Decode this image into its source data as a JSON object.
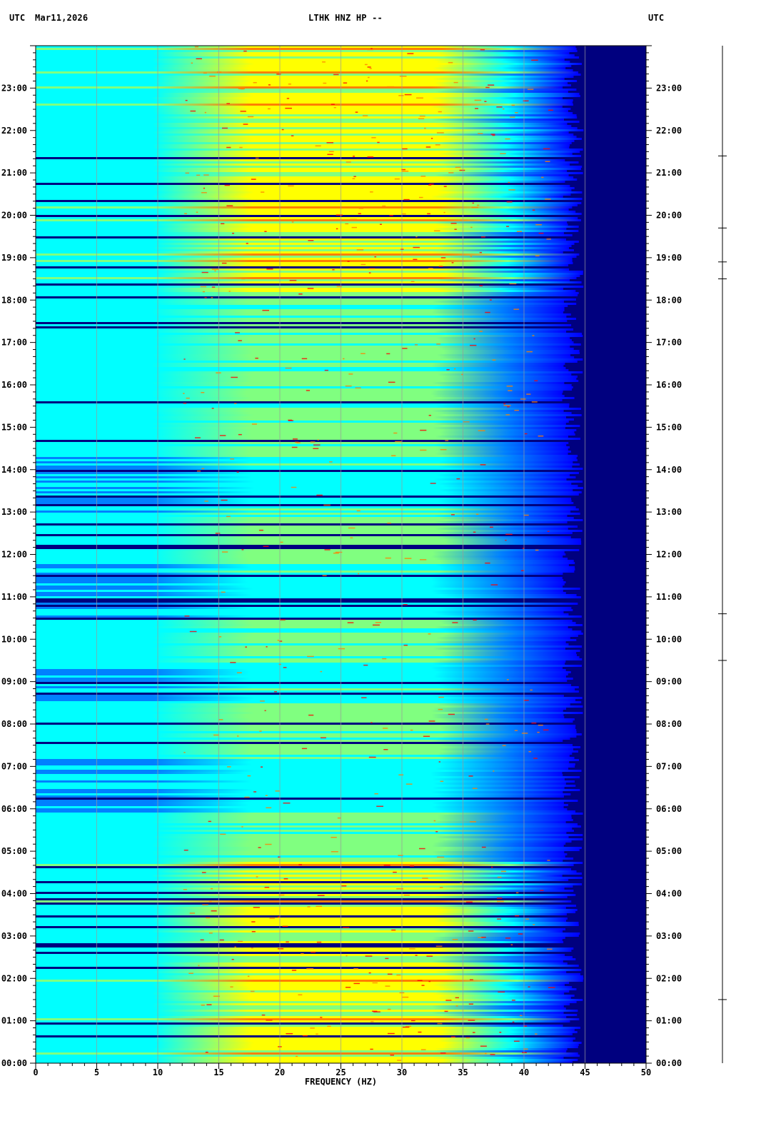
{
  "header": {
    "left_tz": "UTC",
    "date": "Mar11,2026",
    "station": "LTHK HNZ HP --",
    "right_tz": "UTC"
  },
  "chart_data": {
    "type": "heatmap",
    "title": "LTHK HNZ HP --",
    "xlabel": "FREQUENCY (HZ)",
    "ylabel": "UTC",
    "xlim": [
      0,
      50
    ],
    "ylim_hours": [
      0,
      24
    ],
    "x_ticks": [
      "0",
      "5",
      "10",
      "15",
      "20",
      "25",
      "30",
      "35",
      "40",
      "45",
      "50"
    ],
    "y_ticks": [
      "00:00",
      "01:00",
      "02:00",
      "03:00",
      "04:00",
      "05:00",
      "06:00",
      "07:00",
      "08:00",
      "09:00",
      "10:00",
      "11:00",
      "12:00",
      "13:00",
      "14:00",
      "15:00",
      "16:00",
      "17:00",
      "18:00",
      "19:00",
      "20:00",
      "21:00",
      "22:00",
      "23:00"
    ],
    "color_scale": [
      "#00007f",
      "#0000ff",
      "#0080ff",
      "#00ffff",
      "#80ff80",
      "#ffff00",
      "#ff8000",
      "#ff0000"
    ],
    "background_color": "#00007f",
    "noise_cutoff_hz": 44,
    "strong_bands_utc": [
      [
        0,
        4.8
      ],
      [
        18.2,
        24
      ]
    ],
    "quiet_bands_utc": [
      [
        5.9,
        7.2
      ],
      [
        8.5,
        9.4
      ],
      [
        10.5,
        11.8
      ],
      [
        13.0,
        14.3
      ]
    ],
    "sidebar_event_marks_utc": [
      1.5,
      9.5,
      10.6,
      18.5,
      18.9,
      19.7,
      21.4
    ]
  }
}
